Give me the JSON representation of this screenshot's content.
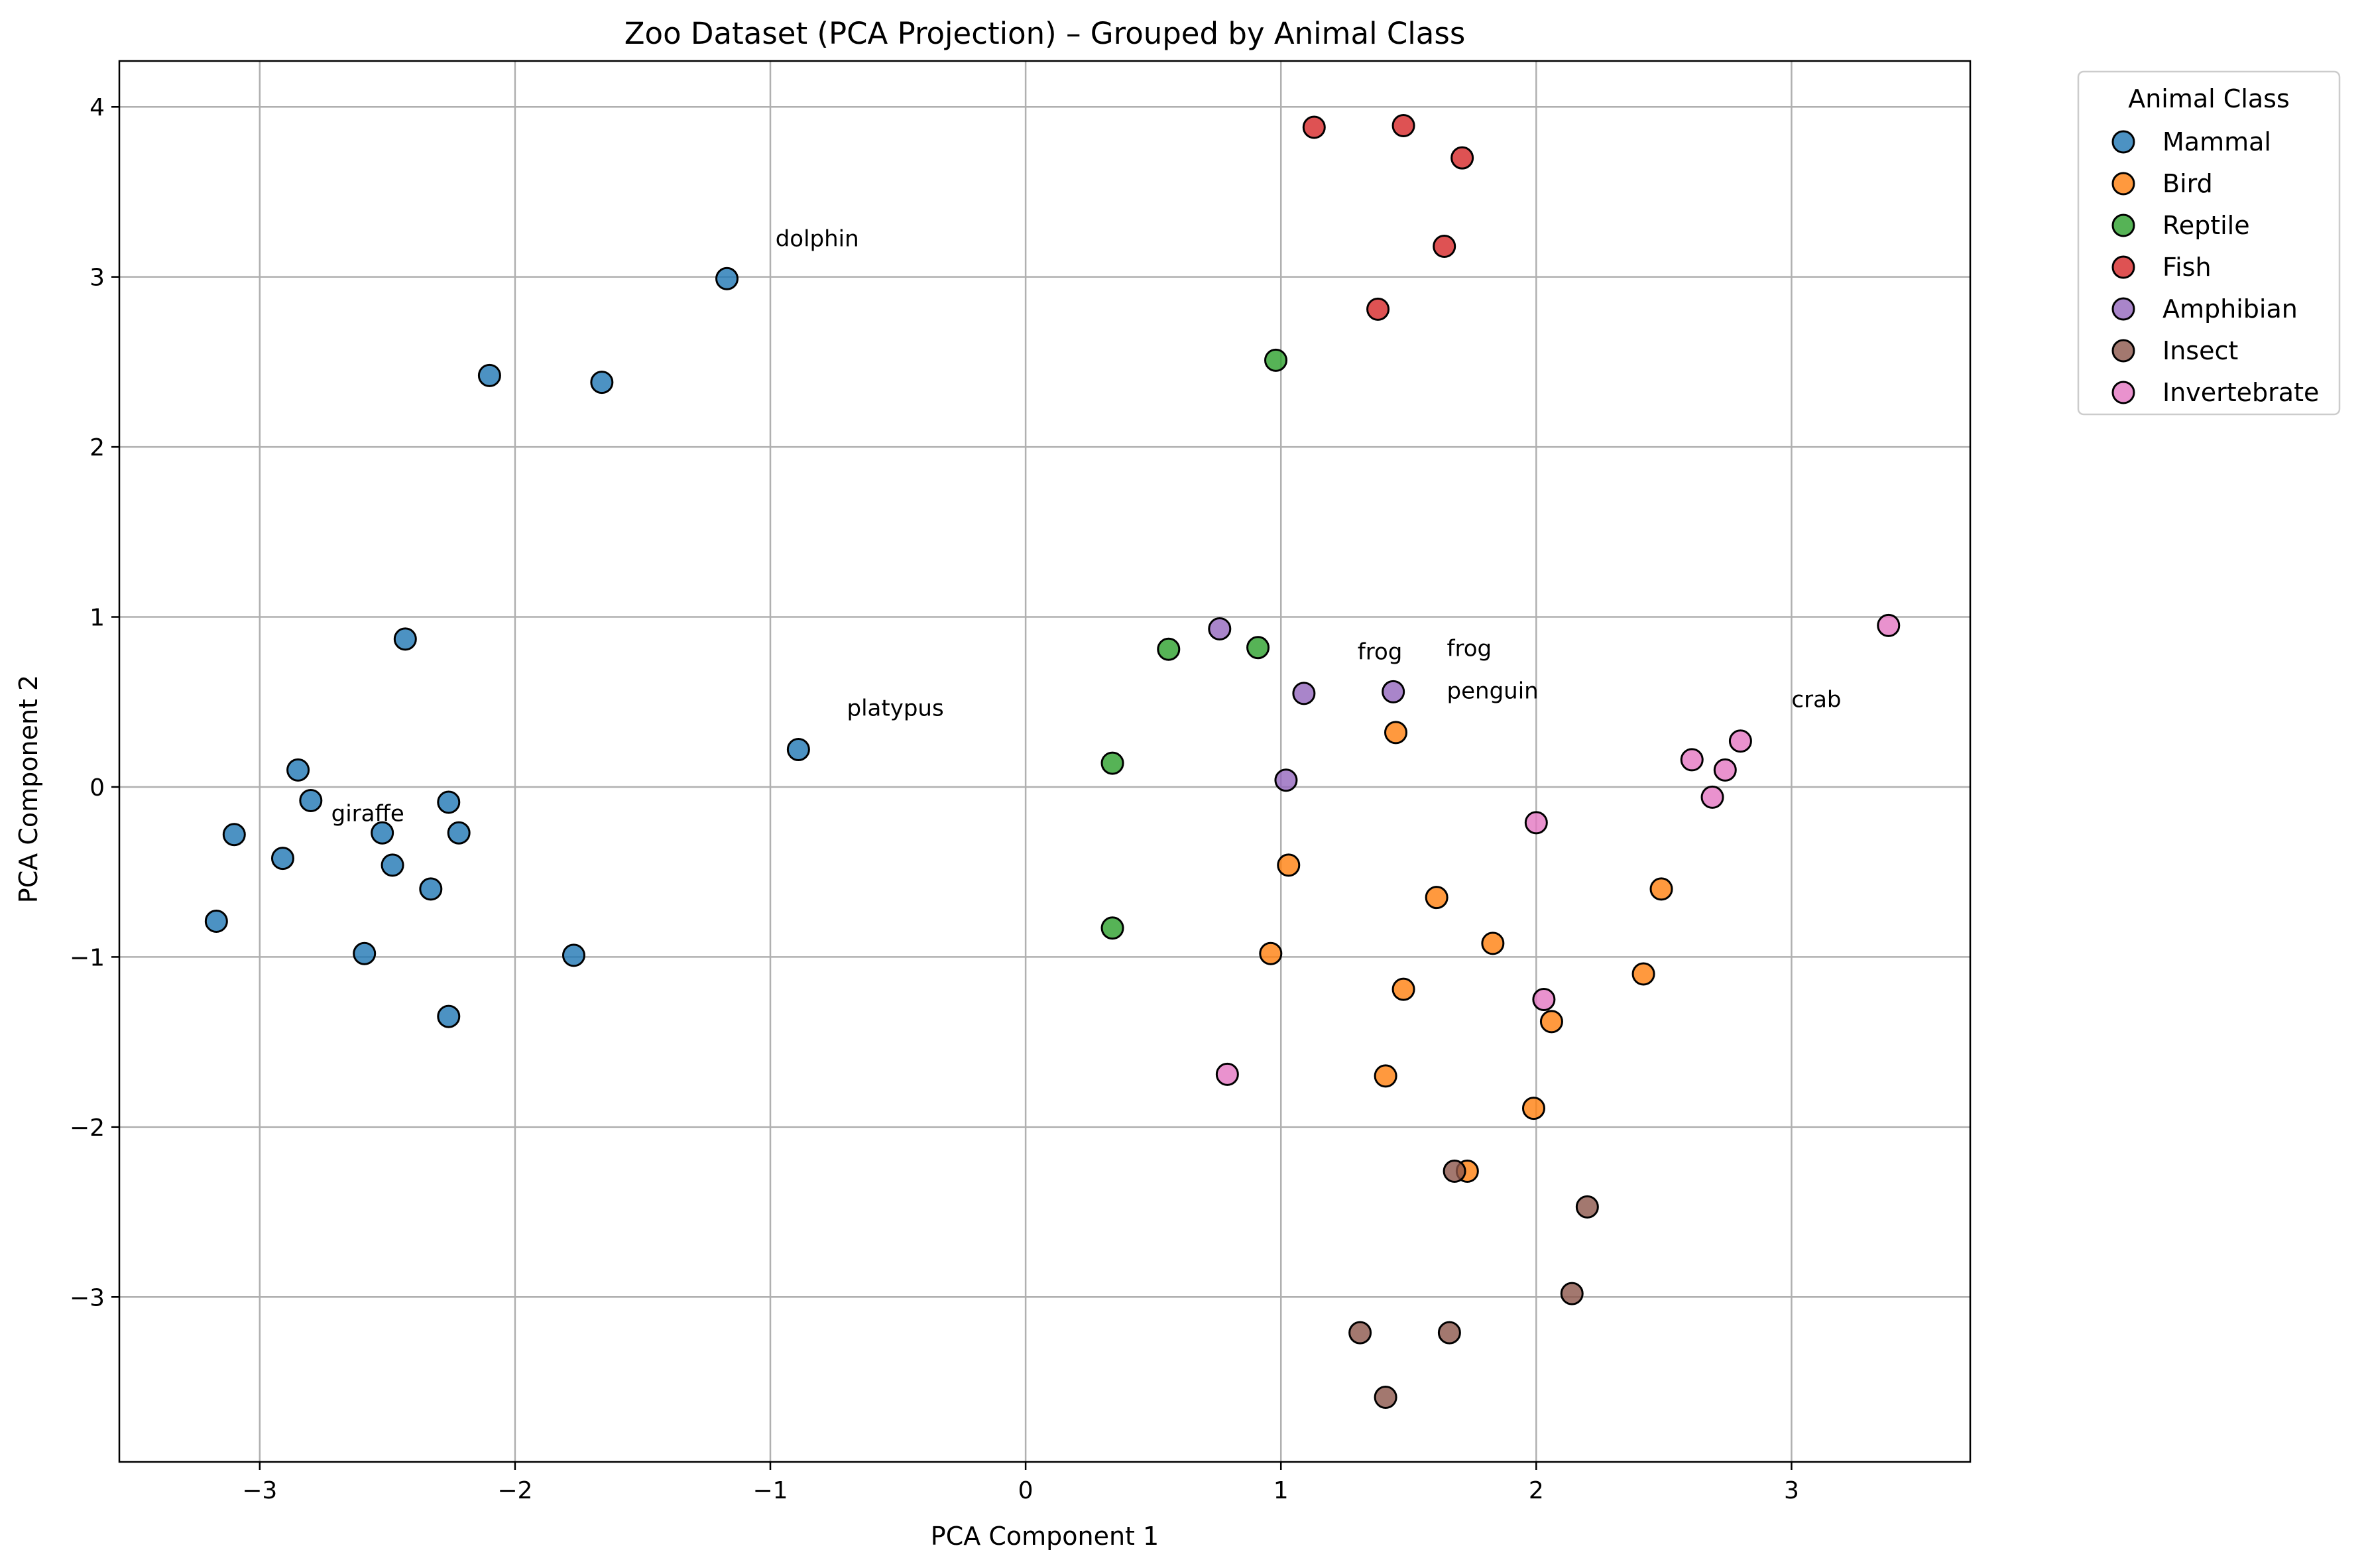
{
  "chart_data": {
    "type": "scatter",
    "title": "Zoo Dataset (PCA Projection) – Grouped by Animal Class",
    "xlabel": "PCA Component 1",
    "ylabel": "PCA Component 2",
    "xlim": [
      -3.55,
      3.7
    ],
    "ylim": [
      -3.97,
      4.27
    ],
    "xticks": [
      -3,
      -2,
      -1,
      0,
      1,
      2,
      3
    ],
    "xtick_labels": [
      "−3",
      "−2",
      "−1",
      "0",
      "1",
      "2",
      "3"
    ],
    "yticks": [
      -3,
      -2,
      -1,
      0,
      1,
      2,
      3,
      4
    ],
    "ytick_labels": [
      "−3",
      "−2",
      "−1",
      "0",
      "1",
      "2",
      "3",
      "4"
    ],
    "grid": true,
    "legend": {
      "title": "Animal Class",
      "placement": "outside-top-right"
    },
    "series": [
      {
        "name": "Mammal",
        "color": "#1f77b4",
        "points": [
          [
            -1.17,
            2.99
          ],
          [
            -2.1,
            2.42
          ],
          [
            -1.66,
            2.38
          ],
          [
            -2.43,
            0.87
          ],
          [
            -0.89,
            0.22
          ],
          [
            -2.85,
            0.1
          ],
          [
            -2.8,
            -0.08
          ],
          [
            -3.1,
            -0.28
          ],
          [
            -2.52,
            -0.27
          ],
          [
            -2.26,
            -0.09
          ],
          [
            -2.22,
            -0.27
          ],
          [
            -2.91,
            -0.42
          ],
          [
            -2.48,
            -0.46
          ],
          [
            -2.33,
            -0.6
          ],
          [
            -3.17,
            -0.79
          ],
          [
            -2.59,
            -0.98
          ],
          [
            -1.77,
            -0.99
          ],
          [
            -2.26,
            -1.35
          ]
        ]
      },
      {
        "name": "Bird",
        "color": "#ff7f0e",
        "points": [
          [
            1.45,
            0.32
          ],
          [
            1.03,
            -0.46
          ],
          [
            1.61,
            -0.65
          ],
          [
            2.49,
            -0.6
          ],
          [
            1.83,
            -0.92
          ],
          [
            0.96,
            -0.98
          ],
          [
            2.42,
            -1.1
          ],
          [
            1.48,
            -1.19
          ],
          [
            2.06,
            -1.38
          ],
          [
            1.41,
            -1.7
          ],
          [
            1.99,
            -1.89
          ],
          [
            1.73,
            -2.26
          ]
        ]
      },
      {
        "name": "Reptile",
        "color": "#2ca02c",
        "points": [
          [
            0.98,
            2.51
          ],
          [
            0.56,
            0.81
          ],
          [
            0.91,
            0.82
          ],
          [
            0.34,
            0.14
          ],
          [
            0.34,
            -0.83
          ]
        ]
      },
      {
        "name": "Fish",
        "color": "#d62728",
        "points": [
          [
            1.13,
            3.88
          ],
          [
            1.48,
            3.89
          ],
          [
            1.71,
            3.7
          ],
          [
            1.64,
            3.18
          ],
          [
            1.38,
            2.81
          ]
        ]
      },
      {
        "name": "Amphibian",
        "color": "#9467bd",
        "points": [
          [
            0.76,
            0.93
          ],
          [
            1.09,
            0.55
          ],
          [
            1.44,
            0.56
          ],
          [
            1.02,
            0.04
          ]
        ]
      },
      {
        "name": "Insect",
        "color": "#8c564b",
        "points": [
          [
            1.68,
            -2.26
          ],
          [
            2.2,
            -2.47
          ],
          [
            2.14,
            -2.98
          ],
          [
            1.31,
            -3.21
          ],
          [
            1.66,
            -3.21
          ],
          [
            1.41,
            -3.59
          ]
        ]
      },
      {
        "name": "Invertebrate",
        "color": "#e377c2",
        "points": [
          [
            3.38,
            0.95
          ],
          [
            2.8,
            0.27
          ],
          [
            2.61,
            0.16
          ],
          [
            2.74,
            0.1
          ],
          [
            2.69,
            -0.06
          ],
          [
            2.0,
            -0.21
          ],
          [
            2.03,
            -1.25
          ],
          [
            0.79,
            -1.69
          ]
        ]
      }
    ],
    "annotations": [
      {
        "text": "dolphin",
        "x": -0.98,
        "y": 3.18
      },
      {
        "text": "platypus",
        "x": -0.7,
        "y": 0.42
      },
      {
        "text": "giraffe",
        "x": -2.72,
        "y": -0.2
      },
      {
        "text": "frog",
        "x": 1.3,
        "y": 0.75
      },
      {
        "text": "frog",
        "x": 1.65,
        "y": 0.77
      },
      {
        "text": "penguin",
        "x": 1.65,
        "y": 0.52
      },
      {
        "text": "crab",
        "x": 3.0,
        "y": 0.47
      }
    ]
  }
}
